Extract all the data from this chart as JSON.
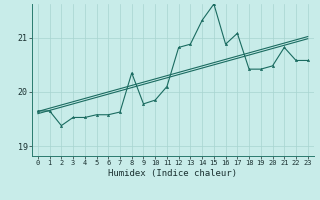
{
  "title": "",
  "xlabel": "Humidex (Indice chaleur)",
  "ylabel": "",
  "bg_color": "#c8ece9",
  "grid_color": "#a8d4d0",
  "line_color": "#1a6b60",
  "xlim": [
    -0.5,
    23.5
  ],
  "ylim": [
    18.82,
    21.62
  ],
  "yticks": [
    19,
    20,
    21
  ],
  "xticks": [
    0,
    1,
    2,
    3,
    4,
    5,
    6,
    7,
    8,
    9,
    10,
    11,
    12,
    13,
    14,
    15,
    16,
    17,
    18,
    19,
    20,
    21,
    22,
    23
  ],
  "x": [
    0,
    1,
    2,
    3,
    4,
    5,
    6,
    7,
    8,
    9,
    10,
    11,
    12,
    13,
    14,
    15,
    16,
    17,
    18,
    19,
    20,
    21,
    22,
    23
  ],
  "y_main": [
    19.65,
    19.65,
    19.38,
    19.53,
    19.53,
    19.58,
    19.58,
    19.63,
    20.35,
    19.78,
    19.85,
    20.1,
    20.82,
    20.88,
    21.32,
    21.62,
    20.88,
    21.08,
    20.42,
    20.42,
    20.48,
    20.82,
    20.58,
    20.58
  ],
  "y_trend1": [
    19.6,
    19.66,
    19.72,
    19.78,
    19.84,
    19.9,
    19.96,
    20.02,
    20.08,
    20.14,
    20.2,
    20.26,
    20.32,
    20.38,
    20.44,
    20.5,
    20.56,
    20.62,
    20.68,
    20.74,
    20.8,
    20.86,
    20.92,
    20.98
  ],
  "y_trend2": [
    19.64,
    19.7,
    19.76,
    19.82,
    19.88,
    19.94,
    20.0,
    20.06,
    20.12,
    20.18,
    20.24,
    20.3,
    20.36,
    20.42,
    20.48,
    20.54,
    20.6,
    20.66,
    20.72,
    20.78,
    20.84,
    20.9,
    20.96,
    21.02
  ],
  "markersize": 1.8,
  "linewidth": 0.8,
  "tick_fontsize": 5.0,
  "xlabel_fontsize": 6.5
}
